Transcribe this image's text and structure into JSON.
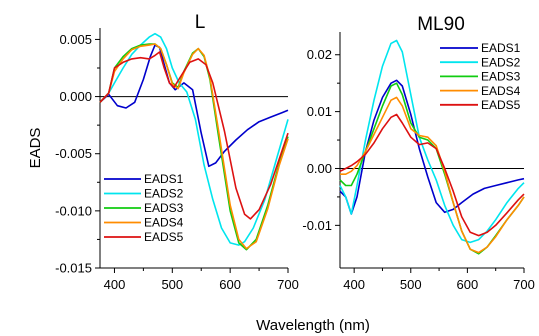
{
  "chart_data": [
    {
      "type": "line",
      "title": "L",
      "xlabel": "Wavelength (nm)",
      "ylabel": "EADS",
      "xlim": [
        375,
        700
      ],
      "ylim": [
        -0.015,
        0.006
      ],
      "xticks": [
        400,
        500,
        600,
        700
      ],
      "xtick_labels": [
        "400",
        "500",
        "600",
        "700"
      ],
      "yticks": [
        -0.015,
        -0.01,
        -0.005,
        0.0,
        0.005
      ],
      "ytick_labels": [
        "-0.015",
        "-0.010",
        "-0.005",
        "0.000",
        "0.005"
      ],
      "zero_line": true,
      "legend_position": "lower-left",
      "series": [
        {
          "name": "EADS1",
          "color": "#0000cc",
          "x": [
            375,
            390,
            405,
            420,
            435,
            450,
            462,
            470,
            478,
            485,
            495,
            505,
            520,
            535,
            550,
            563,
            575,
            590,
            610,
            630,
            650,
            670,
            690,
            700
          ],
          "y": [
            -0.0005,
            0.0002,
            -0.0008,
            -0.001,
            -0.0005,
            0.0015,
            0.0035,
            0.0045,
            0.0043,
            0.003,
            0.0012,
            0.0006,
            0.0012,
            0.0006,
            -0.0032,
            -0.0061,
            -0.0058,
            -0.0048,
            -0.0038,
            -0.0029,
            -0.0022,
            -0.0018,
            -0.0014,
            -0.0012
          ]
        },
        {
          "name": "EADS2",
          "color": "#00e5ee",
          "x": [
            375,
            390,
            400,
            415,
            430,
            445,
            460,
            470,
            480,
            490,
            500,
            512,
            525,
            540,
            555,
            570,
            585,
            600,
            615,
            625,
            640,
            660,
            680,
            700
          ],
          "y": [
            -0.0005,
            0.0003,
            0.0012,
            0.0025,
            0.0037,
            0.0045,
            0.0052,
            0.0055,
            0.0052,
            0.0042,
            0.0025,
            0.0012,
            0.0004,
            -0.002,
            -0.006,
            -0.009,
            -0.0115,
            -0.0128,
            -0.013,
            -0.0127,
            -0.0115,
            -0.009,
            -0.0055,
            -0.002
          ]
        },
        {
          "name": "EADS3",
          "color": "#11cc11",
          "x": [
            375,
            390,
            400,
            415,
            430,
            445,
            460,
            470,
            480,
            490,
            500,
            510,
            520,
            535,
            545,
            555,
            565,
            580,
            600,
            615,
            628,
            645,
            665,
            685,
            700
          ],
          "y": [
            -0.0005,
            0.0003,
            0.0025,
            0.0035,
            0.0042,
            0.0045,
            0.0046,
            0.0046,
            0.0042,
            0.0028,
            0.0012,
            0.0008,
            0.0022,
            0.0038,
            0.0042,
            0.0035,
            0.0015,
            -0.0035,
            -0.01,
            -0.0128,
            -0.0134,
            -0.0125,
            -0.0095,
            -0.0058,
            -0.0035
          ]
        },
        {
          "name": "EADS4",
          "color": "#ff8c00",
          "x": [
            375,
            390,
            400,
            415,
            430,
            445,
            460,
            470,
            480,
            490,
            500,
            510,
            520,
            535,
            545,
            555,
            565,
            580,
            600,
            615,
            628,
            645,
            665,
            685,
            700
          ],
          "y": [
            -0.0005,
            0.0003,
            0.0022,
            0.0033,
            0.0041,
            0.0044,
            0.0045,
            0.0046,
            0.0042,
            0.0028,
            0.0011,
            0.0007,
            0.0021,
            0.0037,
            0.0042,
            0.0036,
            0.0017,
            -0.003,
            -0.0095,
            -0.0125,
            -0.0133,
            -0.0127,
            -0.0098,
            -0.006,
            -0.0037
          ]
        },
        {
          "name": "EADS5",
          "color": "#dd1111",
          "x": [
            375,
            390,
            400,
            415,
            430,
            445,
            460,
            470,
            478,
            486,
            495,
            503,
            515,
            530,
            545,
            558,
            570,
            590,
            610,
            625,
            635,
            650,
            670,
            690,
            700
          ],
          "y": [
            -0.0005,
            0.0003,
            0.0025,
            0.003,
            0.0033,
            0.0034,
            0.0033,
            0.0036,
            0.0039,
            0.0025,
            0.0012,
            0.0008,
            0.0018,
            0.003,
            0.0033,
            0.0028,
            0.0012,
            -0.003,
            -0.008,
            -0.0103,
            -0.0107,
            -0.0099,
            -0.0077,
            -0.0047,
            -0.0032
          ]
        }
      ]
    },
    {
      "type": "line",
      "title": "ML90",
      "xlabel": "Wavelength (nm)",
      "ylabel": "",
      "xlim": [
        375,
        700
      ],
      "ylim": [
        -0.0175,
        0.024
      ],
      "xticks": [
        400,
        500,
        600,
        700
      ],
      "xtick_labels": [
        "400",
        "500",
        "600",
        "700"
      ],
      "yticks": [
        -0.01,
        0.0,
        0.01,
        0.02
      ],
      "ytick_labels": [
        "-0.01",
        "0.00",
        "0.01",
        "0.02"
      ],
      "zero_line": true,
      "legend_position": "top-right",
      "series": [
        {
          "name": "EADS1",
          "color": "#0000cc",
          "x": [
            375,
            385,
            395,
            405,
            420,
            435,
            450,
            465,
            475,
            485,
            500,
            515,
            530,
            545,
            560,
            575,
            590,
            610,
            630,
            650,
            670,
            690,
            700
          ],
          "y": [
            -0.004,
            -0.005,
            -0.008,
            -0.005,
            0.003,
            0.0085,
            0.0125,
            0.015,
            0.0155,
            0.0145,
            0.0095,
            0.0035,
            -0.0015,
            -0.006,
            -0.0077,
            -0.0072,
            -0.006,
            -0.0045,
            -0.0035,
            -0.003,
            -0.0025,
            -0.002,
            -0.0018
          ]
        },
        {
          "name": "EADS2",
          "color": "#00e5ee",
          "x": [
            375,
            385,
            395,
            405,
            420,
            435,
            450,
            465,
            475,
            485,
            500,
            515,
            530,
            545,
            560,
            575,
            590,
            605,
            620,
            635,
            650,
            670,
            690,
            700
          ],
          "y": [
            -0.003,
            -0.005,
            -0.008,
            -0.003,
            0.005,
            0.012,
            0.018,
            0.022,
            0.0225,
            0.0205,
            0.013,
            0.0055,
            0.0015,
            -0.002,
            -0.0065,
            -0.01,
            -0.0125,
            -0.013,
            -0.0125,
            -0.011,
            -0.009,
            -0.006,
            -0.0035,
            -0.0025
          ]
        },
        {
          "name": "EADS3",
          "color": "#11cc11",
          "x": [
            375,
            385,
            395,
            405,
            420,
            435,
            450,
            465,
            475,
            485,
            500,
            515,
            530,
            545,
            560,
            575,
            590,
            605,
            620,
            635,
            650,
            670,
            690,
            700
          ],
          "y": [
            -0.002,
            -0.003,
            -0.003,
            -0.001,
            0.003,
            0.007,
            0.011,
            0.0145,
            0.015,
            0.013,
            0.008,
            0.0055,
            0.005,
            0.0035,
            -0.001,
            -0.006,
            -0.011,
            -0.0142,
            -0.015,
            -0.0138,
            -0.0118,
            -0.009,
            -0.0065,
            -0.005
          ]
        },
        {
          "name": "EADS4",
          "color": "#ff8c00",
          "x": [
            375,
            385,
            395,
            405,
            420,
            435,
            450,
            465,
            475,
            485,
            500,
            515,
            530,
            545,
            560,
            575,
            590,
            605,
            620,
            635,
            650,
            670,
            690,
            700
          ],
          "y": [
            -0.001,
            -0.001,
            -0.0005,
            0.0005,
            0.003,
            0.006,
            0.009,
            0.012,
            0.0125,
            0.011,
            0.007,
            0.0058,
            0.0055,
            0.004,
            -0.0005,
            -0.006,
            -0.011,
            -0.0142,
            -0.0148,
            -0.0138,
            -0.012,
            -0.009,
            -0.0065,
            -0.005
          ]
        },
        {
          "name": "EADS5",
          "color": "#dd1111",
          "x": [
            375,
            385,
            395,
            405,
            420,
            435,
            450,
            465,
            475,
            485,
            500,
            515,
            530,
            545,
            560,
            575,
            590,
            605,
            620,
            635,
            650,
            670,
            690,
            700
          ],
          "y": [
            -0.0005,
            0.0,
            0.0005,
            0.0012,
            0.0025,
            0.0045,
            0.007,
            0.009,
            0.0095,
            0.008,
            0.0055,
            0.0042,
            0.0045,
            0.0035,
            0.0,
            -0.004,
            -0.0085,
            -0.0112,
            -0.0118,
            -0.0112,
            -0.01,
            -0.0078,
            -0.0055,
            -0.0045
          ]
        }
      ]
    }
  ]
}
